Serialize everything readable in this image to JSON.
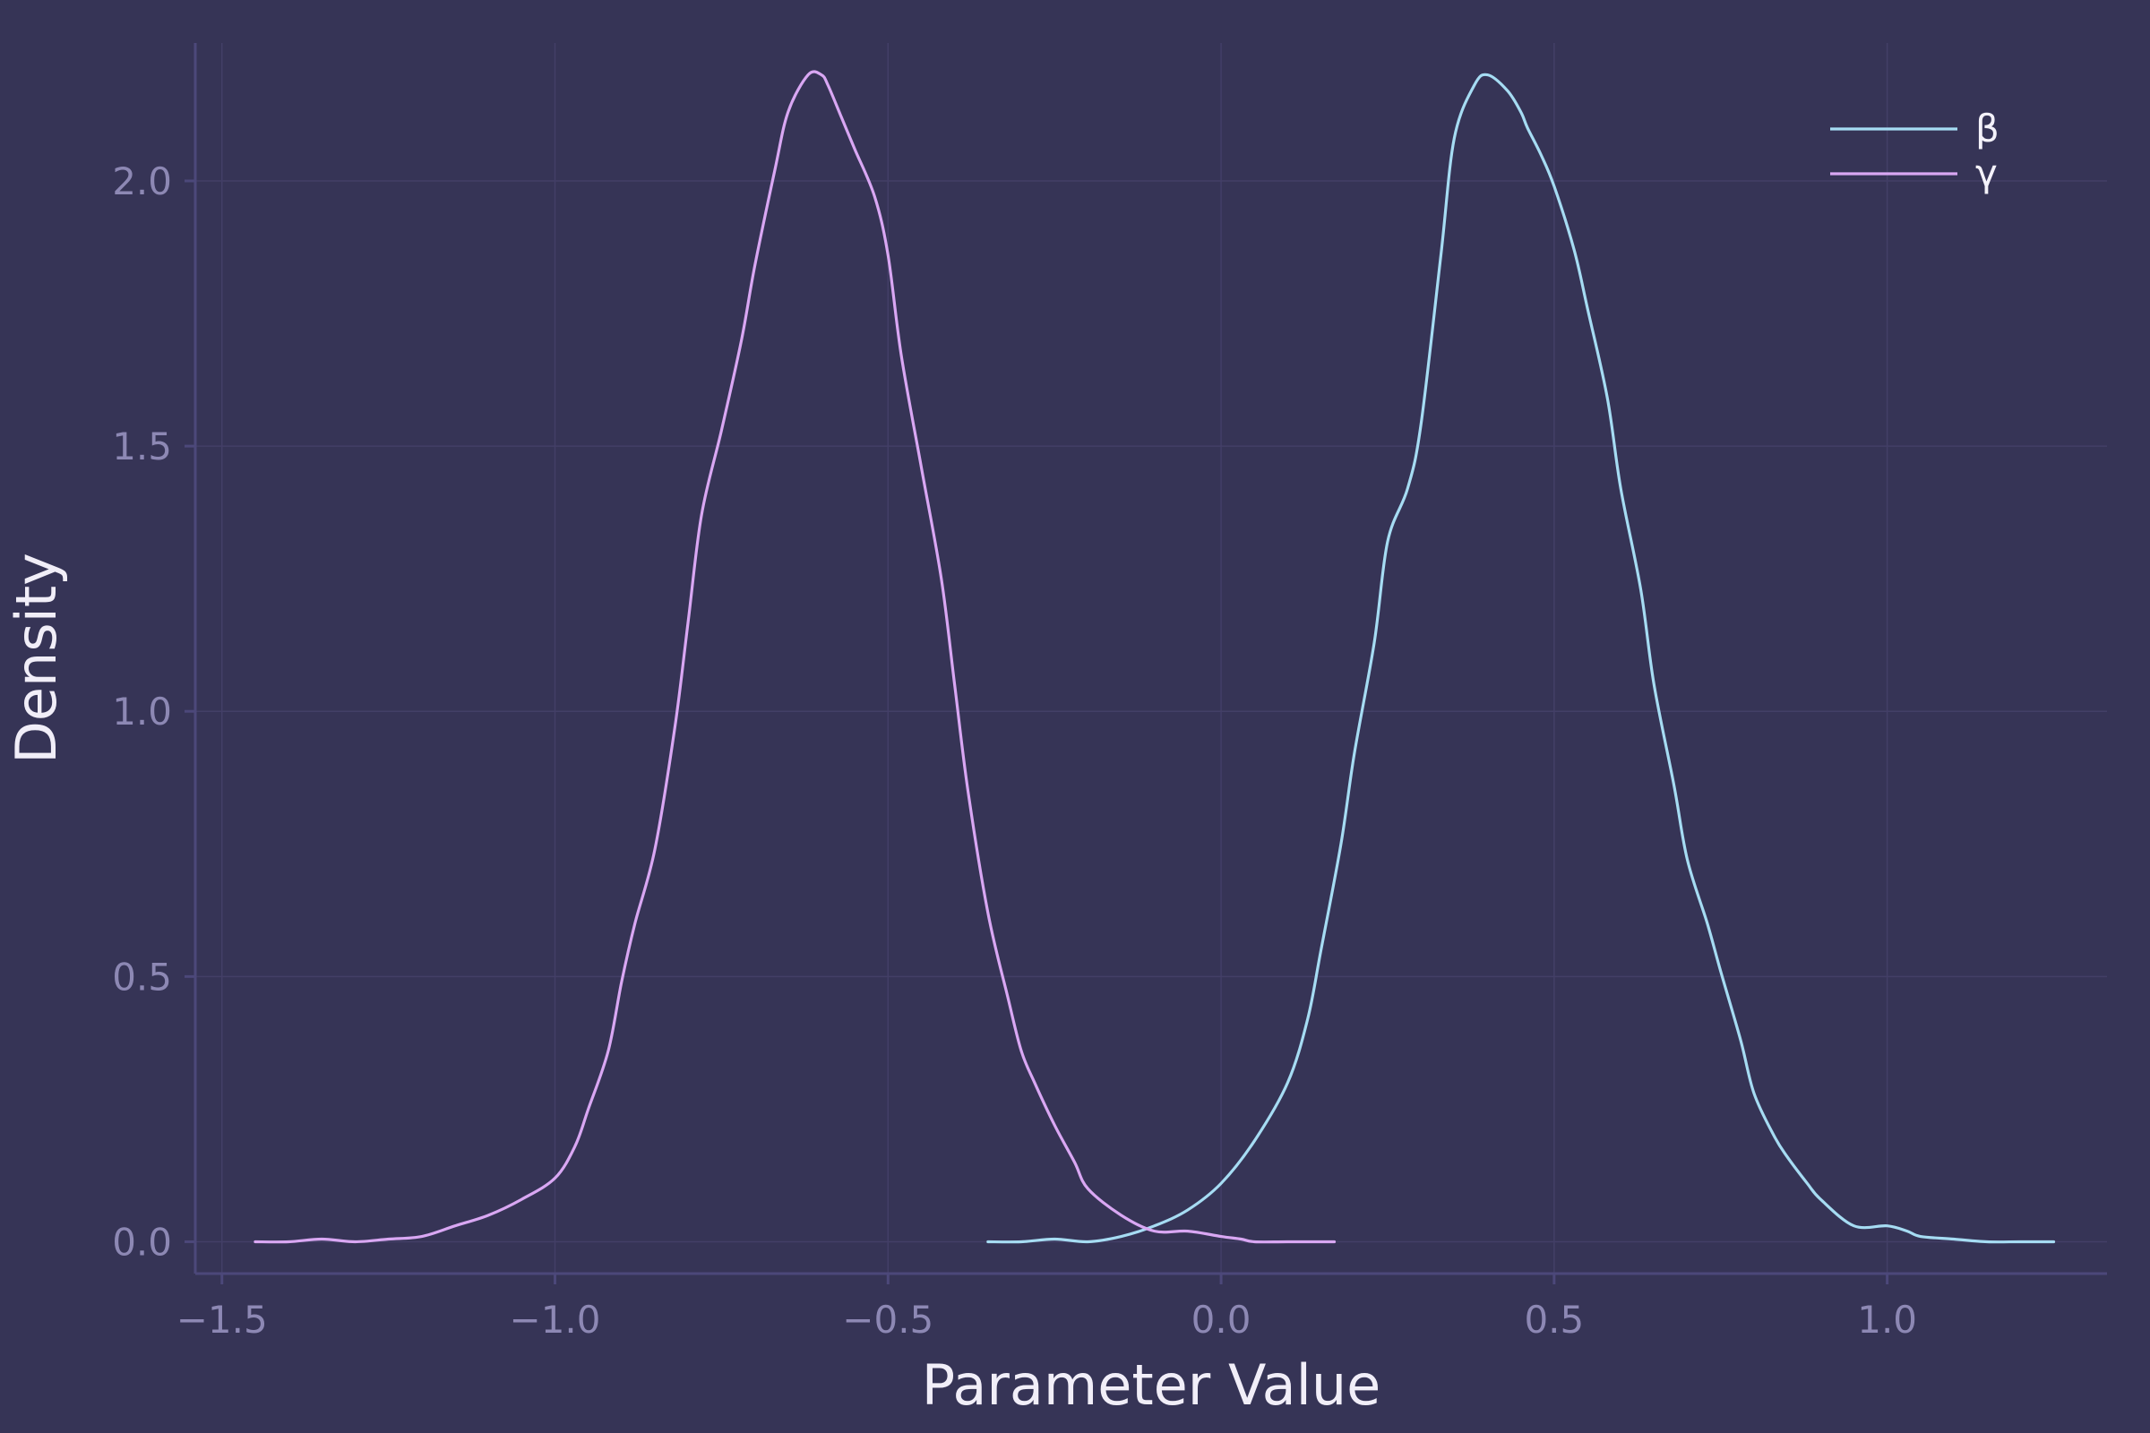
{
  "chart_data": {
    "type": "line",
    "title": "",
    "xlabel": "Parameter Value",
    "ylabel": "Density",
    "xlim": [
      -1.54,
      1.33
    ],
    "ylim": [
      -0.06,
      2.26
    ],
    "xticks": [
      -1.5,
      -1.0,
      -0.5,
      0.0,
      0.5,
      1.0
    ],
    "xtick_labels": [
      "−1.5",
      "−1.0",
      "−0.5",
      "0.0",
      "0.5",
      "1.0"
    ],
    "yticks": [
      0.0,
      0.5,
      1.0,
      1.5,
      2.0
    ],
    "ytick_labels": [
      "0.0",
      "0.5",
      "1.0",
      "1.5",
      "2.0"
    ],
    "grid": true,
    "legend_position": "top-right",
    "background": "#363456",
    "series": [
      {
        "name": "β",
        "color": "#a6dcf3",
        "x": [
          -0.35,
          -0.3,
          -0.25,
          -0.2,
          -0.15,
          -0.1,
          -0.05,
          0.0,
          0.05,
          0.1,
          0.13,
          0.15,
          0.18,
          0.2,
          0.23,
          0.25,
          0.28,
          0.3,
          0.33,
          0.35,
          0.38,
          0.4,
          0.43,
          0.45,
          0.46,
          0.48,
          0.5,
          0.53,
          0.55,
          0.58,
          0.6,
          0.63,
          0.65,
          0.68,
          0.7,
          0.73,
          0.75,
          0.78,
          0.8,
          0.83,
          0.85,
          0.88,
          0.9,
          0.95,
          1.0,
          1.03,
          1.05,
          1.1,
          1.15,
          1.2,
          1.25
        ],
        "y": [
          0.0,
          0.0,
          0.005,
          0.0,
          0.01,
          0.03,
          0.06,
          0.11,
          0.19,
          0.3,
          0.42,
          0.55,
          0.75,
          0.92,
          1.13,
          1.32,
          1.42,
          1.54,
          1.86,
          2.08,
          2.18,
          2.2,
          2.17,
          2.13,
          2.1,
          2.05,
          1.99,
          1.87,
          1.76,
          1.59,
          1.42,
          1.23,
          1.05,
          0.86,
          0.72,
          0.6,
          0.51,
          0.38,
          0.28,
          0.2,
          0.16,
          0.11,
          0.08,
          0.03,
          0.03,
          0.02,
          0.01,
          0.005,
          0.0,
          0.0,
          0.0
        ]
      },
      {
        "name": "γ",
        "color": "#d9a7f3",
        "x": [
          -1.45,
          -1.4,
          -1.35,
          -1.3,
          -1.25,
          -1.2,
          -1.15,
          -1.1,
          -1.05,
          -1.0,
          -0.97,
          -0.95,
          -0.92,
          -0.9,
          -0.88,
          -0.85,
          -0.82,
          -0.8,
          -0.78,
          -0.75,
          -0.72,
          -0.7,
          -0.67,
          -0.65,
          -0.62,
          -0.6,
          -0.59,
          -0.57,
          -0.55,
          -0.52,
          -0.5,
          -0.48,
          -0.45,
          -0.42,
          -0.4,
          -0.38,
          -0.35,
          -0.32,
          -0.3,
          -0.28,
          -0.25,
          -0.22,
          -0.2,
          -0.15,
          -0.1,
          -0.05,
          0.0,
          0.03,
          0.05,
          0.1,
          0.17
        ],
        "y": [
          0.0,
          0.0,
          0.005,
          0.0,
          0.005,
          0.01,
          0.03,
          0.05,
          0.08,
          0.12,
          0.18,
          0.25,
          0.36,
          0.49,
          0.6,
          0.74,
          0.97,
          1.17,
          1.37,
          1.53,
          1.7,
          1.84,
          2.02,
          2.13,
          2.2,
          2.2,
          2.18,
          2.12,
          2.06,
          1.97,
          1.86,
          1.67,
          1.46,
          1.25,
          1.05,
          0.85,
          0.62,
          0.46,
          0.36,
          0.3,
          0.22,
          0.15,
          0.1,
          0.05,
          0.02,
          0.02,
          0.01,
          0.005,
          0.0,
          0.0,
          0.0
        ]
      }
    ]
  }
}
